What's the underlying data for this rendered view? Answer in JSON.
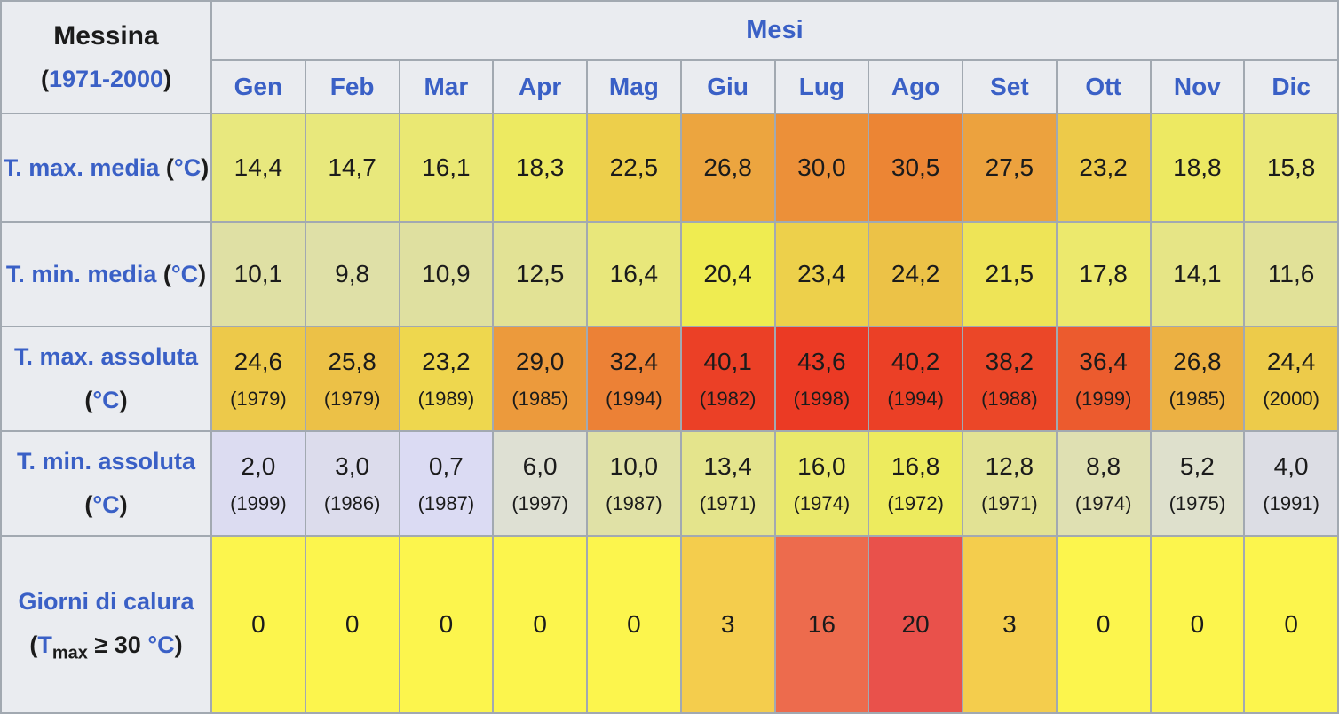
{
  "symbols": {
    "open": "(",
    "close": ")"
  },
  "theme": {
    "header_bg": "#eaecf0",
    "border": "#a2a9b1",
    "link_blue": "#3a60c6",
    "text": "#1b1b1b"
  },
  "table": {
    "station": "Messina",
    "period_years": "1971-2000",
    "months_title": "Mesi",
    "months": [
      "Gen",
      "Feb",
      "Mar",
      "Apr",
      "Mag",
      "Giu",
      "Lug",
      "Ago",
      "Set",
      "Ott",
      "Nov",
      "Dic"
    ],
    "rows": [
      {
        "label": "T. max. media",
        "unit": "°C",
        "values": [
          "14,4",
          "14,7",
          "16,1",
          "18,3",
          "22,5",
          "26,8",
          "30,0",
          "30,5",
          "27,5",
          "23,2",
          "18,8",
          "15,8"
        ],
        "colors": [
          "#e8e87e",
          "#e8e87c",
          "#eae873",
          "#edea61",
          "#edcf4b",
          "#eca53f",
          "#ec9039",
          "#ec8534",
          "#eca23e",
          "#edca49",
          "#ede962",
          "#eae878"
        ]
      },
      {
        "label": "T. min. media",
        "unit": "°C",
        "values": [
          "10,1",
          "9,8",
          "10,9",
          "12,5",
          "16,4",
          "20,4",
          "23,4",
          "24,2",
          "21,5",
          "17,8",
          "14,1",
          "11,6"
        ],
        "colors": [
          "#dfe0a4",
          "#dfe0a7",
          "#dfe0a0",
          "#e2e295",
          "#e8e77b",
          "#efec51",
          "#edd04b",
          "#ecc247",
          "#eee457",
          "#ece96d",
          "#e6e586",
          "#e1e198"
        ]
      },
      {
        "label": "T. max. assoluta",
        "unit": "°C",
        "values": [
          "24,6",
          "25,8",
          "23,2",
          "29,0",
          "32,4",
          "40,1",
          "43,6",
          "40,2",
          "38,2",
          "36,4",
          "26,8",
          "24,4"
        ],
        "years": [
          "(1979)",
          "(1979)",
          "(1989)",
          "(1985)",
          "(1994)",
          "(1982)",
          "(1998)",
          "(1994)",
          "(1988)",
          "(1999)",
          "(1985)",
          "(2000)"
        ],
        "colors": [
          "#edc94a",
          "#ecc147",
          "#eed74e",
          "#ec9a3c",
          "#ec8136",
          "#eb4026",
          "#eb3a24",
          "#eb4026",
          "#eb4728",
          "#ec5b2e",
          "#ecb143",
          "#edcb4a"
        ]
      },
      {
        "label": "T. min. assoluta",
        "unit": "°C",
        "values": [
          "2,0",
          "3,0",
          "0,7",
          "6,0",
          "10,0",
          "13,4",
          "16,0",
          "16,8",
          "12,8",
          "8,8",
          "5,2",
          "4,0"
        ],
        "years": [
          "(1999)",
          "(1986)",
          "(1987)",
          "(1997)",
          "(1987)",
          "(1971)",
          "(1974)",
          "(1972)",
          "(1971)",
          "(1974)",
          "(1975)",
          "(1991)"
        ],
        "colors": [
          "#dcdcf1",
          "#dcdcec",
          "#dbdbf3",
          "#dee0d3",
          "#e0e1a6",
          "#e4e48c",
          "#eae96b",
          "#edeb5e",
          "#e2e294",
          "#dfe0b2",
          "#dee0cc",
          "#dcdde4"
        ]
      },
      {
        "label": "Giorni di calura",
        "tvar": "T",
        "tsub": "max",
        "cond": "≥ 30",
        "unit": "°C",
        "values": [
          "0",
          "0",
          "0",
          "0",
          "0",
          "3",
          "16",
          "20",
          "3",
          "0",
          "0",
          "0"
        ],
        "colors": [
          "#fcf54d",
          "#fcf54d",
          "#fcf54d",
          "#fcf54d",
          "#fcf54d",
          "#f4cd4d",
          "#ed6b4d",
          "#e9514b",
          "#f4cd4d",
          "#fcf54d",
          "#fcf54d",
          "#fcf54d"
        ]
      }
    ]
  },
  "chart_data": {
    "type": "table",
    "title": "Messina (1971-2000)",
    "categories": [
      "Gen",
      "Feb",
      "Mar",
      "Apr",
      "Mag",
      "Giu",
      "Lug",
      "Ago",
      "Set",
      "Ott",
      "Nov",
      "Dic"
    ],
    "series": [
      {
        "name": "T. max. media (°C)",
        "values": [
          14.4,
          14.7,
          16.1,
          18.3,
          22.5,
          26.8,
          30.0,
          30.5,
          27.5,
          23.2,
          18.8,
          15.8
        ]
      },
      {
        "name": "T. min. media (°C)",
        "values": [
          10.1,
          9.8,
          10.9,
          12.5,
          16.4,
          20.4,
          23.4,
          24.2,
          21.5,
          17.8,
          14.1,
          11.6
        ]
      },
      {
        "name": "T. max. assoluta (°C)",
        "values": [
          24.6,
          25.8,
          23.2,
          29.0,
          32.4,
          40.1,
          43.6,
          40.2,
          38.2,
          36.4,
          26.8,
          24.4
        ],
        "years": [
          1979,
          1979,
          1989,
          1985,
          1994,
          1982,
          1998,
          1994,
          1988,
          1999,
          1985,
          2000
        ]
      },
      {
        "name": "T. min. assoluta (°C)",
        "values": [
          2.0,
          3.0,
          0.7,
          6.0,
          10.0,
          13.4,
          16.0,
          16.8,
          12.8,
          8.8,
          5.2,
          4.0
        ],
        "years": [
          1999,
          1986,
          1987,
          1997,
          1987,
          1971,
          1974,
          1972,
          1971,
          1974,
          1975,
          1991
        ]
      },
      {
        "name": "Giorni di calura (Tmax ≥ 30 °C)",
        "values": [
          0,
          0,
          0,
          0,
          0,
          3,
          16,
          20,
          3,
          0,
          0,
          0
        ]
      }
    ]
  }
}
